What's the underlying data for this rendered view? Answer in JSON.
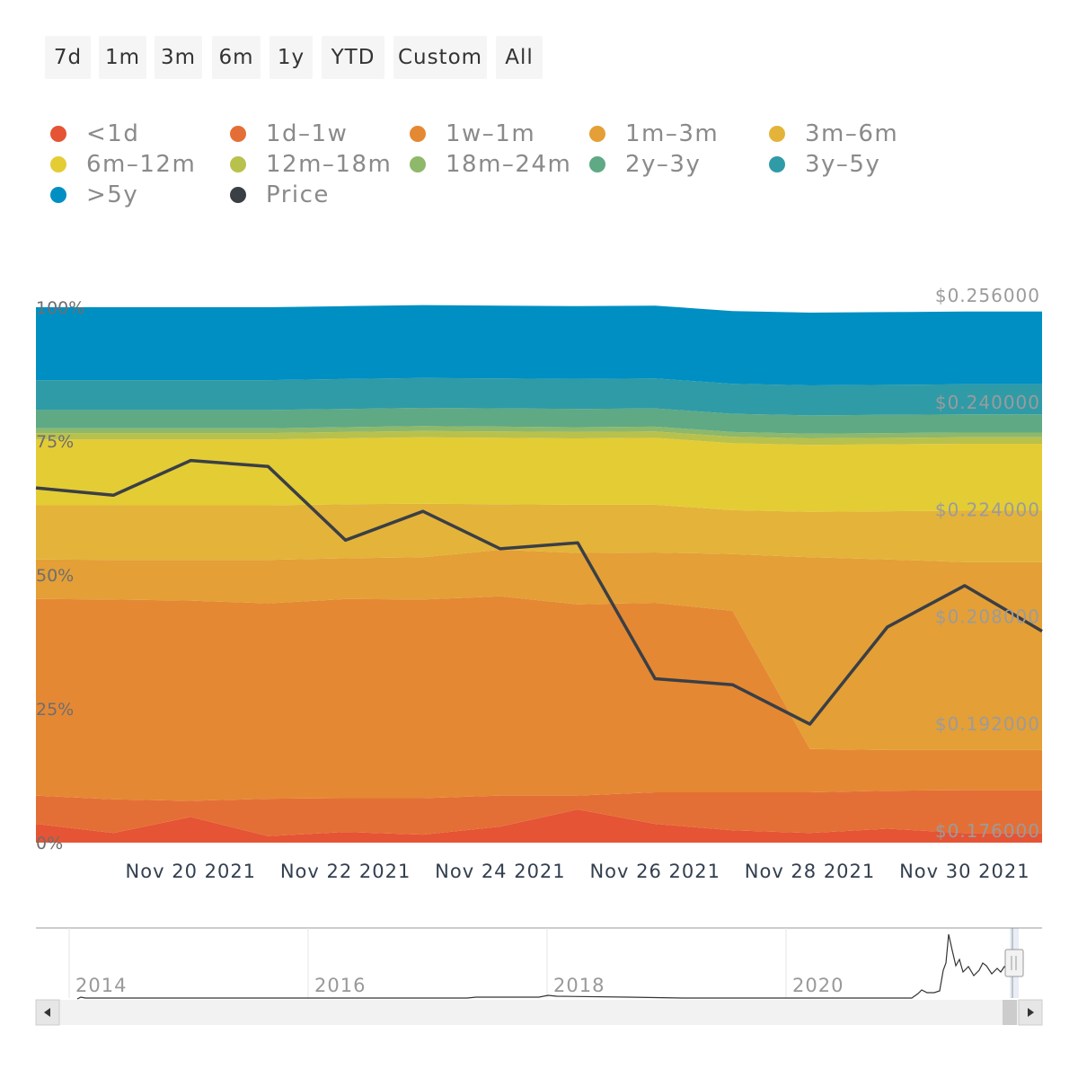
{
  "range_selector": {
    "buttons": [
      "7d",
      "1m",
      "3m",
      "6m",
      "1y",
      "YTD",
      "Custom",
      "All"
    ]
  },
  "legend": [
    {
      "label": "<1d",
      "color": "#e55434"
    },
    {
      "label": "1d–1w",
      "color": "#e46f36"
    },
    {
      "label": "1w–1m",
      "color": "#e58833"
    },
    {
      "label": "1m–3m",
      "color": "#e49f36"
    },
    {
      "label": "3m–6m",
      "color": "#e4b33a"
    },
    {
      "label": "6m–12m",
      "color": "#e4cc35"
    },
    {
      "label": "12m–18m",
      "color": "#b9c14d"
    },
    {
      "label": "18m–24m",
      "color": "#8eb86a"
    },
    {
      "label": "2y–3y",
      "color": "#5fa985"
    },
    {
      "label": "3y–5y",
      "color": "#2f9ba6"
    },
    {
      "label": ">5y",
      "color": "#008fc2"
    },
    {
      "label": "Price",
      "color": "#3a3f45"
    }
  ],
  "chart_data": {
    "type": "area",
    "stacking": "percent",
    "x": [
      "Nov 18 2021",
      "Nov 19 2021",
      "Nov 20 2021",
      "Nov 21 2021",
      "Nov 22 2021",
      "Nov 23 2021",
      "Nov 24 2021",
      "Nov 25 2021",
      "Nov 26 2021",
      "Nov 27 2021",
      "Nov 28 2021",
      "Nov 29 2021",
      "Nov 30 2021",
      "Dec 1 2021"
    ],
    "x_tick_labels": [
      "Nov 20 2021",
      "Nov 22 2021",
      "Nov 24 2021",
      "Nov 26 2021",
      "Nov 28 2021",
      "Nov 30 2021"
    ],
    "left_axis": {
      "ticks": [
        "0%",
        "25%",
        "50%",
        "75%",
        "100%"
      ],
      "range": [
        0,
        100
      ]
    },
    "right_axis": {
      "ticks": [
        "$0.176000",
        "$0.192000",
        "$0.208000",
        "$0.224000",
        "$0.240000",
        "$0.256000"
      ],
      "range": [
        0.176,
        0.256
      ]
    },
    "series": [
      {
        "name": "<1d",
        "values": [
          3.5,
          1.8,
          4.8,
          1.2,
          2.0,
          1.5,
          3.0,
          6.2,
          3.5,
          2.3,
          1.8,
          2.6,
          1.8,
          1.8
        ]
      },
      {
        "name": "1d–1w",
        "values": [
          5.3,
          6.3,
          3.0,
          7.0,
          6.3,
          6.8,
          5.8,
          2.6,
          5.9,
          7.1,
          7.6,
          7.1,
          8.0,
          8.0
        ]
      },
      {
        "name": "1w–1m",
        "values": [
          36.7,
          37.3,
          37.4,
          36.5,
          37.2,
          37.1,
          37.2,
          35.7,
          35.4,
          33.9,
          8.1,
          7.6,
          7.5,
          7.5
        ]
      },
      {
        "name": "1m–3m",
        "values": [
          7.4,
          7.4,
          7.6,
          8.1,
          7.6,
          7.9,
          8.7,
          9.6,
          9.4,
          10.6,
          35.8,
          35.6,
          35.1,
          35.1
        ]
      },
      {
        "name": "3m–6m",
        "values": [
          10.1,
          10.2,
          10.2,
          10.2,
          10.1,
          10.0,
          8.5,
          9.0,
          8.9,
          8.2,
          8.5,
          9.0,
          9.6,
          9.6
        ]
      },
      {
        "name": "6m–12m",
        "values": [
          12.3,
          12.3,
          12.3,
          12.3,
          12.3,
          12.4,
          12.4,
          12.4,
          12.5,
          12.5,
          12.5,
          12.5,
          12.5,
          12.5
        ]
      },
      {
        "name": "12m–18m",
        "values": [
          1.2,
          1.2,
          1.2,
          1.2,
          1.2,
          1.2,
          1.2,
          1.2,
          1.2,
          1.2,
          1.2,
          1.2,
          1.2,
          1.2
        ]
      },
      {
        "name": "18m–24m",
        "values": [
          0.9,
          0.9,
          0.9,
          0.9,
          0.9,
          0.9,
          0.9,
          0.9,
          0.9,
          0.9,
          0.9,
          0.9,
          0.9,
          0.9
        ]
      },
      {
        "name": "2y–3y",
        "values": [
          3.4,
          3.4,
          3.4,
          3.4,
          3.4,
          3.4,
          3.4,
          3.4,
          3.4,
          3.4,
          3.4,
          3.4,
          3.4,
          3.4
        ]
      },
      {
        "name": "3y–5y",
        "values": [
          5.6,
          5.6,
          5.6,
          5.6,
          5.6,
          5.6,
          5.6,
          5.6,
          5.6,
          5.6,
          5.6,
          5.6,
          5.6,
          5.6
        ]
      },
      {
        "name": ">5y",
        "values": [
          13.6,
          13.6,
          13.6,
          13.6,
          13.6,
          13.6,
          13.6,
          13.6,
          13.6,
          13.6,
          13.6,
          13.6,
          13.6,
          13.6
        ]
      }
    ],
    "price": {
      "name": "Price",
      "values": [
        0.229,
        0.2279,
        0.2331,
        0.2322,
        0.2212,
        0.2255,
        0.2199,
        0.2208,
        0.2005,
        0.1996,
        0.1937,
        0.2082,
        0.2144,
        0.2076
      ]
    },
    "legend_position": "top"
  },
  "navigator": {
    "year_labels": [
      "2014",
      "2016",
      "2018",
      "2020"
    ]
  }
}
